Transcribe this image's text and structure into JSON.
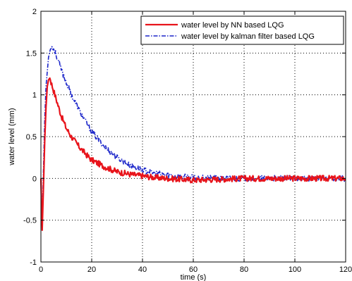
{
  "chart_data": {
    "type": "line",
    "title": "",
    "xlabel": "time (s)",
    "ylabel": "water level (mm)",
    "xlim": [
      0,
      120
    ],
    "ylim": [
      -1,
      2
    ],
    "xticks": [
      0,
      20,
      40,
      60,
      80,
      100,
      120
    ],
    "yticks": [
      -1,
      -0.5,
      0,
      0.5,
      1,
      1.5,
      2
    ],
    "grid": true,
    "legend_position": "top-right",
    "series": [
      {
        "name": "water level by NN based LQG",
        "color": "#e8141b",
        "style": "solid",
        "x": [
          0,
          0.5,
          1,
          1.5,
          2,
          2.5,
          3,
          3.5,
          4,
          5,
          6,
          7,
          8,
          10,
          12,
          15,
          18,
          20,
          25,
          30,
          35,
          40,
          45,
          50,
          55,
          60,
          70,
          80,
          90,
          100,
          110,
          120
        ],
        "values": [
          0,
          -0.62,
          -0.1,
          0.45,
          0.85,
          1.1,
          1.18,
          1.2,
          1.15,
          1.05,
          0.95,
          0.85,
          0.75,
          0.6,
          0.5,
          0.38,
          0.28,
          0.22,
          0.14,
          0.08,
          0.05,
          0.03,
          0.01,
          0.0,
          -0.01,
          -0.02,
          -0.01,
          0.0,
          0.0,
          0.0,
          0.0,
          0.0
        ]
      },
      {
        "name": "water level by kalman filter based LQG",
        "color": "#1a24c9",
        "style": "dash-dot",
        "x": [
          0,
          0.5,
          1,
          1.5,
          2,
          3,
          4,
          5,
          6,
          7,
          8,
          10,
          12,
          15,
          18,
          20,
          25,
          30,
          35,
          40,
          45,
          50,
          55,
          60,
          70,
          80,
          90,
          100,
          110,
          120
        ],
        "values": [
          0,
          -0.5,
          0.1,
          0.7,
          1.1,
          1.45,
          1.58,
          1.55,
          1.48,
          1.4,
          1.3,
          1.15,
          1.0,
          0.82,
          0.66,
          0.56,
          0.38,
          0.25,
          0.16,
          0.1,
          0.06,
          0.04,
          0.02,
          0.01,
          0.0,
          0.0,
          0.0,
          0.0,
          0.0,
          0.0
        ]
      }
    ]
  }
}
